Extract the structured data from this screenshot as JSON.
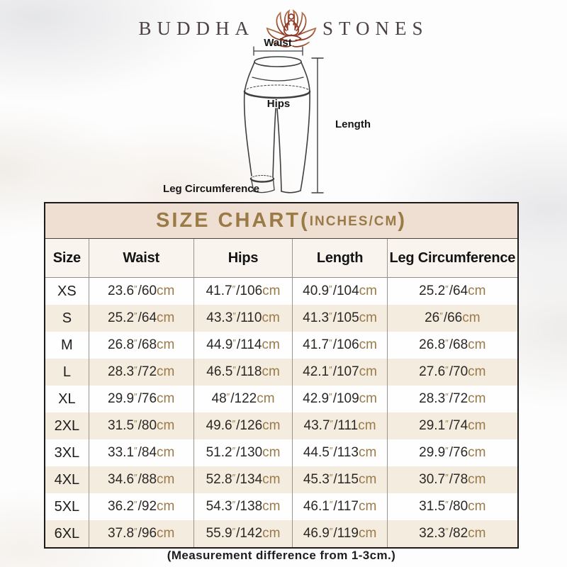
{
  "logo": {
    "brand_left": "BUDDHA",
    "brand_right": "STONES",
    "icon": "lotus-meditation-icon"
  },
  "diagram": {
    "waist_label": "Waist",
    "hips_label": "Hips",
    "length_label": "Length",
    "leg_circumference_label": "Leg Circumference"
  },
  "size_chart": {
    "title": "SIZE CHART",
    "title_paren_open": "(",
    "title_units": "INCHES/CM",
    "title_paren_close": ")",
    "columns": [
      "Size",
      "Waist",
      "Hips",
      "Length",
      "Leg Circumference"
    ],
    "rows": [
      {
        "size": "XS",
        "waist": "23.6″/60cm",
        "hips": "41.7″/106cm",
        "length": "40.9″/104cm",
        "leg_circumference": "25.2″/64cm"
      },
      {
        "size": "S",
        "waist": "25.2″/64cm",
        "hips": "43.3″/110cm",
        "length": "41.3″/105cm",
        "leg_circumference": "26″/66cm"
      },
      {
        "size": "M",
        "waist": "26.8″/68cm",
        "hips": "44.9″/114cm",
        "length": "41.7″/106cm",
        "leg_circumference": "26.8″/68cm"
      },
      {
        "size": "L",
        "waist": "28.3″/72cm",
        "hips": "46.5″/118cm",
        "length": "42.1″/107cm",
        "leg_circumference": "27.6″/70cm"
      },
      {
        "size": "XL",
        "waist": "29.9″/76cm",
        "hips": "48″/122cm",
        "length": "42.9″/109cm",
        "leg_circumference": "28.3″/72cm"
      },
      {
        "size": "2XL",
        "waist": "31.5″/80cm",
        "hips": "49.6″/126cm",
        "length": "43.7″/111cm",
        "leg_circumference": "29.1″/74cm"
      },
      {
        "size": "3XL",
        "waist": "33.1″/84cm",
        "hips": "51.2″/130cm",
        "length": "44.5″/113cm",
        "leg_circumference": "29.9″/76cm"
      },
      {
        "size": "4XL",
        "waist": "34.6″/88cm",
        "hips": "52.8″/134cm",
        "length": "45.3″/115cm",
        "leg_circumference": "30.7″/78cm"
      },
      {
        "size": "5XL",
        "waist": "36.2″/92cm",
        "hips": "54.3″/138cm",
        "length": "46.1″/117cm",
        "leg_circumference": "31.5″/80cm"
      },
      {
        "size": "6XL",
        "waist": "37.8″/96cm",
        "hips": "55.9″/142cm",
        "length": "46.9″/119cm",
        "leg_circumference": "32.3″/82cm"
      }
    ]
  },
  "footer": {
    "note": "(Measurement difference from 1-3cm.)"
  },
  "colors": {
    "accent_brown": "#9a7a49",
    "title_brown": "#9a7a47",
    "title_band_bg": "#eedfd2",
    "alt_row_bg": "#f4ecdf",
    "ink": "#2b2724",
    "lotus_top": "#b5714a",
    "lotus_bottom": "#8a3424"
  }
}
